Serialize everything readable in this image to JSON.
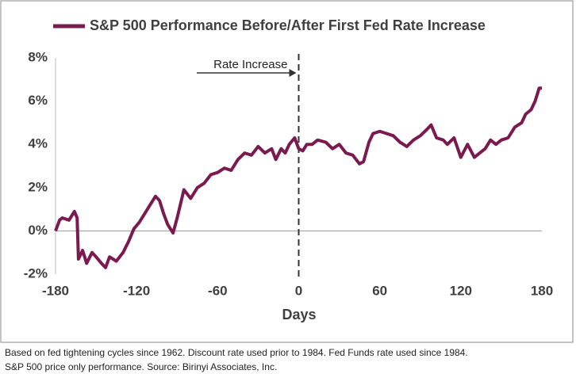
{
  "chart_data": {
    "type": "line",
    "x_label": "Days",
    "annotation": "Rate Increase",
    "annotation_x": 0,
    "footnotes": [
      "Based on fed tightening cycles since 1962. Discount rate used prior to 1984. Fed Funds rate used since 1984.",
      "S&P 500 price only performance. Source: Birinyi Associates, Inc."
    ],
    "x": [
      -180,
      -177,
      -175,
      -170,
      -166,
      -164,
      -163,
      -160,
      -157,
      -153,
      -150,
      -146,
      -143,
      -140,
      -135,
      -130,
      -126,
      -122,
      -118,
      -114,
      -110,
      -106,
      -103,
      -100,
      -97,
      -93,
      -90,
      -85,
      -80,
      -75,
      -70,
      -65,
      -60,
      -55,
      -50,
      -45,
      -40,
      -35,
      -30,
      -25,
      -20,
      -17,
      -13,
      -10,
      -7,
      -3,
      0,
      3,
      6,
      10,
      14,
      20,
      25,
      30,
      35,
      40,
      45,
      48,
      52,
      55,
      60,
      65,
      70,
      75,
      80,
      85,
      90,
      95,
      98,
      102,
      107,
      110,
      115,
      120,
      125,
      130,
      134,
      138,
      142,
      146,
      150,
      155,
      160,
      165,
      168,
      172,
      175,
      178,
      180
    ],
    "series": [
      {
        "name": "S&P 500 Performance Before/After First Fed Rate Increase",
        "color": "#7b1a4f",
        "values": [
          0.0,
          0.5,
          0.6,
          0.5,
          0.9,
          0.6,
          -1.3,
          -0.9,
          -1.5,
          -1.0,
          -1.2,
          -1.5,
          -1.7,
          -1.2,
          -1.4,
          -1.0,
          -0.5,
          0.1,
          0.4,
          0.8,
          1.2,
          1.6,
          1.4,
          0.8,
          0.3,
          -0.1,
          0.6,
          1.9,
          1.5,
          2.0,
          2.2,
          2.6,
          2.7,
          2.9,
          2.8,
          3.3,
          3.6,
          3.5,
          3.9,
          3.6,
          3.8,
          3.3,
          3.8,
          3.6,
          4.0,
          4.3,
          3.8,
          3.7,
          4.0,
          4.0,
          4.2,
          4.1,
          3.8,
          4.0,
          3.6,
          3.5,
          3.1,
          3.2,
          4.1,
          4.5,
          4.6,
          4.5,
          4.4,
          4.1,
          3.9,
          4.2,
          4.4,
          4.7,
          4.9,
          4.3,
          4.2,
          4.0,
          4.3,
          3.4,
          4.0,
          3.4,
          3.6,
          3.8,
          4.2,
          4.0,
          4.2,
          4.3,
          4.8,
          5.0,
          5.4,
          5.6,
          6.0,
          6.6,
          6.6
        ]
      }
    ],
    "xlim": [
      -180,
      180
    ],
    "xticks": [
      -180,
      -120,
      -60,
      0,
      60,
      120,
      180
    ],
    "ylim": [
      -2,
      8
    ],
    "yticks": [
      {
        "value": -2,
        "label": "-2%"
      },
      {
        "value": 0,
        "label": "0%"
      },
      {
        "value": 2,
        "label": "2%"
      },
      {
        "value": 4,
        "label": "4%"
      },
      {
        "value": 6,
        "label": "6%"
      },
      {
        "value": 8,
        "label": "8%"
      }
    ],
    "zero_line": true
  }
}
